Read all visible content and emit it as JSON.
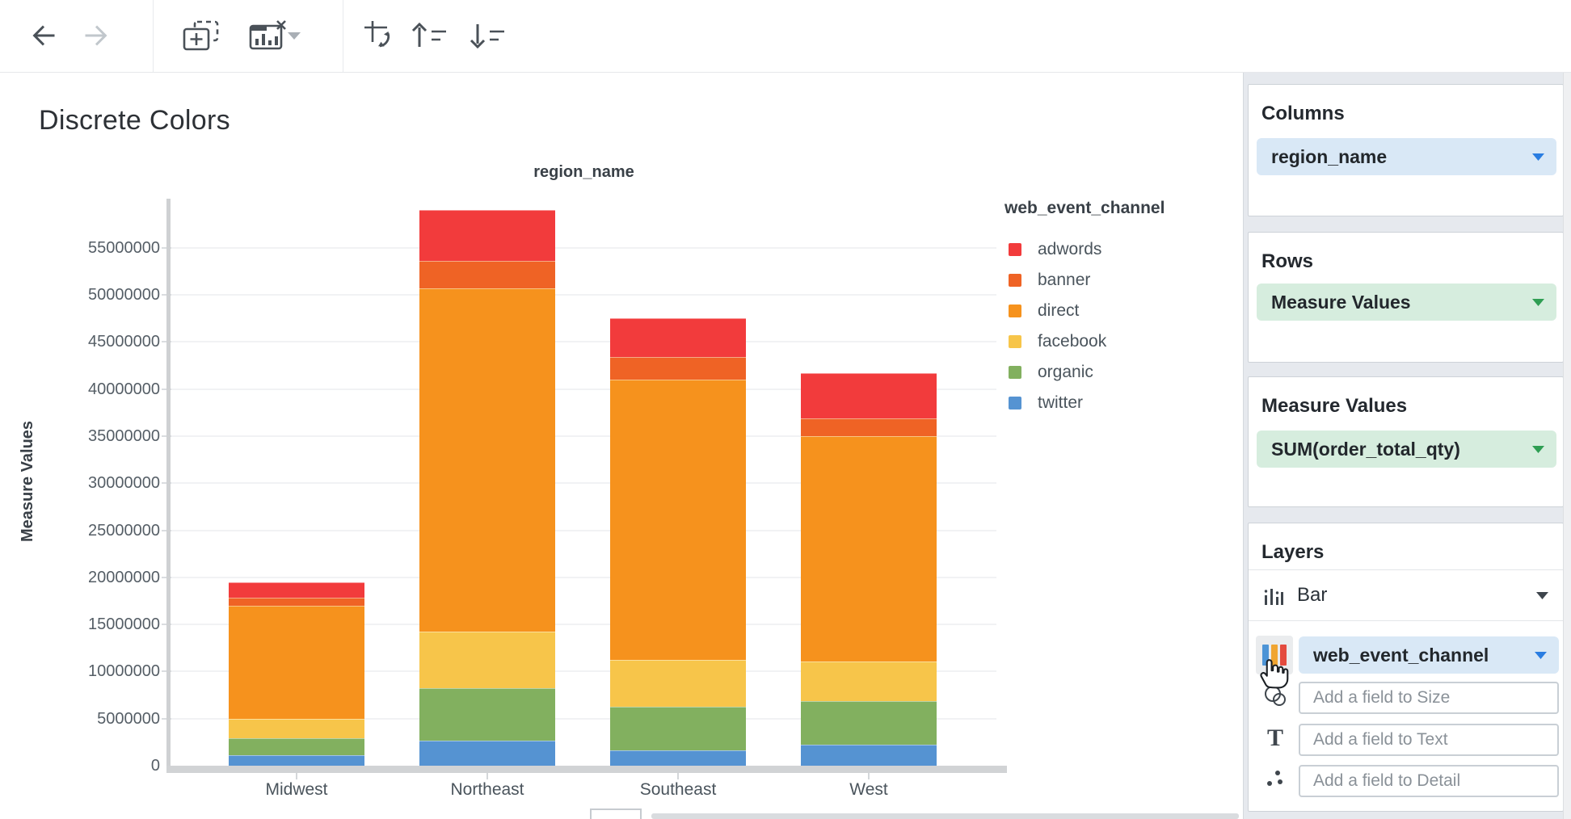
{
  "page": {
    "title": "Discrete Colors"
  },
  "toolbar": {
    "icons": [
      "back",
      "forward",
      "add-visualization",
      "remove-visualization",
      "remove-visualization-dropdown",
      "swap-axes",
      "sort-ascending",
      "sort-descending"
    ]
  },
  "chart_data": {
    "type": "bar",
    "stacked": true,
    "x_field": "region_name",
    "y_axis_label": "Measure Values",
    "legend_title": "web_event_channel",
    "legend_position": "right",
    "grid": true,
    "categories": [
      "Midwest",
      "Northeast",
      "Southeast",
      "West"
    ],
    "series": [
      {
        "name": "adwords",
        "color": "#F23B3C",
        "values": [
          1600000,
          5400000,
          4100000,
          4800000
        ]
      },
      {
        "name": "banner",
        "color": "#EF6325",
        "values": [
          900000,
          2900000,
          2400000,
          1900000
        ]
      },
      {
        "name": "direct",
        "color": "#F6921D",
        "values": [
          12000000,
          36500000,
          29800000,
          23850000
        ]
      },
      {
        "name": "facebook",
        "color": "#F7C54A",
        "values": [
          2000000,
          6000000,
          4900000,
          4250000
        ]
      },
      {
        "name": "organic",
        "color": "#82B05F",
        "values": [
          1850000,
          5550000,
          4700000,
          4600000
        ]
      },
      {
        "name": "twitter",
        "color": "#5593D2",
        "values": [
          1100000,
          2650000,
          1600000,
          2250000
        ]
      }
    ],
    "stack_order_note": "first series renders at top of stack, last series at bottom",
    "y_ticks": [
      0,
      5000000,
      10000000,
      15000000,
      20000000,
      25000000,
      30000000,
      35000000,
      40000000,
      45000000,
      50000000,
      55000000
    ],
    "ylim": [
      0,
      60000000
    ]
  },
  "panel": {
    "columns_title": "Columns",
    "columns_pill": "region_name",
    "rows_title": "Rows",
    "rows_pill": "Measure Values",
    "measure_values_title": "Measure Values",
    "measure_values_pill": "SUM(order_total_qty)",
    "layers_title": "Layers",
    "layer_type_label": "Bar",
    "color_pill": "web_event_channel",
    "size_placeholder": "Add a field to Size",
    "text_placeholder": "Add a field to Text",
    "detail_placeholder": "Add a field to Detail"
  },
  "colors": {
    "dimension_pill_bg": "#D9E8F6",
    "dimension_accent": "#2A7DE1",
    "measure_pill_bg": "#D6EDDE",
    "measure_accent": "#2F9E53"
  }
}
